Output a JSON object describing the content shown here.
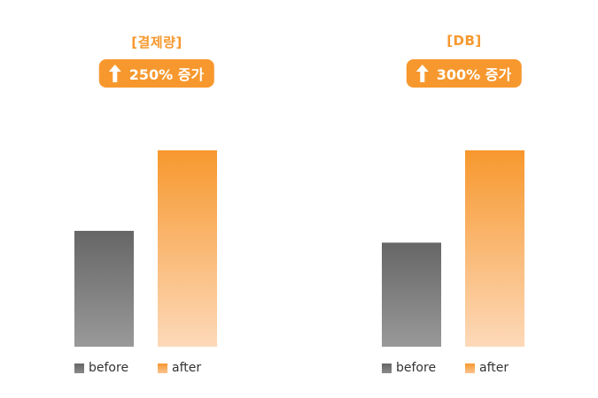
{
  "chart_data": [
    {
      "type": "bar",
      "title": "[결제량]",
      "badge_text": "250% 증가",
      "categories": [
        "before",
        "after"
      ],
      "values": [
        59,
        100
      ],
      "ylim": [
        0,
        100
      ],
      "colors": {
        "before": [
          "#666666",
          "#999999"
        ],
        "after": [
          "#f7982e",
          "#fdd9b9"
        ]
      },
      "legend": [
        {
          "label": "before",
          "color": "#777777"
        },
        {
          "label": "after",
          "color": "#f8a654"
        }
      ],
      "grid": false
    },
    {
      "type": "bar",
      "title": "[DB]",
      "badge_text": "300% 증가",
      "categories": [
        "before",
        "after"
      ],
      "values": [
        53,
        100
      ],
      "ylim": [
        0,
        100
      ],
      "colors": {
        "before": [
          "#666666",
          "#999999"
        ],
        "after": [
          "#f7982e",
          "#fdd9b9"
        ]
      },
      "legend": [
        {
          "label": "before",
          "color": "#777777"
        },
        {
          "label": "after",
          "color": "#f8a654"
        }
      ],
      "grid": false
    }
  ],
  "icons": {
    "badge_icon": "arrow-up-icon"
  }
}
